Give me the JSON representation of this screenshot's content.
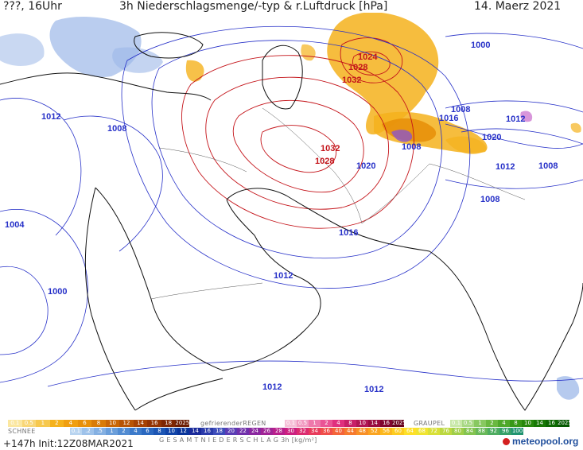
{
  "header": {
    "run_label": "???, 16Uhr",
    "title": "3h Niederschlagsmenge/-typ & r.Luftdruck [hPa]",
    "date": "14. Maerz 2021"
  },
  "map": {
    "isobar_labels": [
      {
        "text": "1024",
        "color": "red"
      },
      {
        "text": "1028",
        "color": "red"
      },
      {
        "text": "1032",
        "color": "red"
      },
      {
        "text": "1032",
        "color": "red"
      },
      {
        "text": "1028",
        "color": "red"
      },
      {
        "text": "1020",
        "color": "blue"
      },
      {
        "text": "1016",
        "color": "blue"
      },
      {
        "text": "1008",
        "color": "blue"
      },
      {
        "text": "1016",
        "color": "blue"
      },
      {
        "text": "1012",
        "color": "blue"
      },
      {
        "text": "1020",
        "color": "blue"
      },
      {
        "text": "1012",
        "color": "blue"
      },
      {
        "text": "1008",
        "color": "blue"
      },
      {
        "text": "1008",
        "color": "blue"
      },
      {
        "text": "1000",
        "color": "blue"
      },
      {
        "text": "1008",
        "color": "blue"
      },
      {
        "text": "1012",
        "color": "blue"
      },
      {
        "text": "1008",
        "color": "blue"
      },
      {
        "text": "1004",
        "color": "blue"
      },
      {
        "text": "1000",
        "color": "blue"
      },
      {
        "text": "1012",
        "color": "blue"
      },
      {
        "text": "1012",
        "color": "blue"
      },
      {
        "text": "1012",
        "color": "blue"
      }
    ],
    "colors": {
      "isobar_high": "#c4141a",
      "isobar_low": "#2630c8",
      "coast": "#111111",
      "snow": "#9db8e8",
      "rain": "#f5b21c",
      "rain_heavy": "#e8900a",
      "convective": "#8c55c8",
      "graupel": "#c86acc"
    }
  },
  "legend": {
    "rain_label": "",
    "rain_scale": [
      "0.1",
      "0.5",
      "1",
      "2",
      "4",
      "6",
      "8",
      "10",
      "12",
      "14",
      "16",
      "18",
      "2025+"
    ],
    "freezing_label": "gefrierenderREGEN",
    "freezing_scale": [
      "0.1",
      "0.5",
      "1",
      "2",
      "4",
      "8",
      "10",
      "14",
      "16",
      "2025+"
    ],
    "graupel_label": "GRAUPEL",
    "graupel_scale": [
      "0.1",
      "0.5",
      "1",
      "2",
      "4",
      "8",
      "10",
      "14",
      "16",
      "2025+"
    ],
    "snow_label": "SCHNEE",
    "snow_scale": [
      "0.1",
      ".2",
      ".5",
      "1",
      "2",
      "4",
      "6",
      "8",
      "10",
      "12"
    ],
    "total_label": "G E S A M T N I E D E R S C H L A G  3h  [kg/m²]",
    "total_scale": [
      "14",
      "16",
      "18",
      "20",
      "22",
      "24",
      "26",
      "28",
      "30",
      "32",
      "34",
      "36",
      "40",
      "44",
      "48",
      "52",
      "56",
      "60",
      "64",
      "68",
      "72",
      "76",
      "80",
      "84",
      "88",
      "92",
      "96",
      "100"
    ],
    "rain_colors": [
      "#fbe7a0",
      "#f8d676",
      "#f6c84e",
      "#f5b21c",
      "#f09f10",
      "#e8900a",
      "#d97b06",
      "#c96605",
      "#b85404",
      "#a64203",
      "#933303",
      "#7e2602",
      "#6b1c02"
    ],
    "freezing_colors": [
      "#f6c0d8",
      "#f29cc2",
      "#ee78ab",
      "#ea5495",
      "#e0307e",
      "#c82068",
      "#b01654",
      "#980c40",
      "#80062e",
      "#68021e"
    ],
    "graupel_colors": [
      "#c8e8a8",
      "#a8d884",
      "#88c860",
      "#6ab840",
      "#4ea82a",
      "#389818",
      "#26880c",
      "#187806",
      "#0c6802",
      "#045800"
    ],
    "snow_colors": [
      "#b8d4f0",
      "#9ec2ea",
      "#84b0e2",
      "#6a9eda",
      "#528cd2",
      "#3c7aca",
      "#2a68c0",
      "#1c56b4",
      "#1044a8",
      "#08349a"
    ],
    "total_colors": [
      "#1a2a9a",
      "#2a3aaa",
      "#3c4cba",
      "#5a3cb4",
      "#7030aa",
      "#8a28a0",
      "#a02496",
      "#b8208c",
      "#cc2080",
      "#dc2c70",
      "#e83c5c",
      "#f04e4a",
      "#f4643a",
      "#f67a2e",
      "#f89026",
      "#faa420",
      "#fcb81e",
      "#fdcc20",
      "#fee028",
      "#f0e430",
      "#d8e038",
      "#bcd840",
      "#a0ce48",
      "#84c450",
      "#68b858",
      "#4eac60",
      "#36a068",
      "#209470"
    ]
  },
  "footer": {
    "run_info": "+147h Init:12Z08MAR2021",
    "logo_text": "meteopool.org"
  }
}
